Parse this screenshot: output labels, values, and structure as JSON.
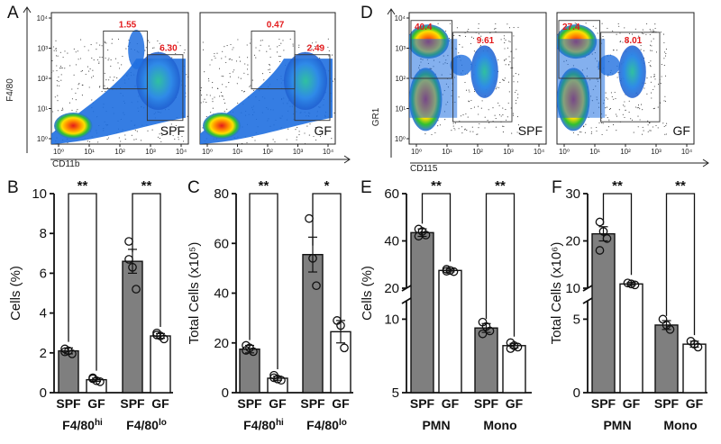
{
  "colors": {
    "spf_bar": "#7f7f7f",
    "gf_bar": "#ffffff",
    "gate_pct": "#e31a1c",
    "density_hi": "#e31a1c",
    "density_mid": "#1f6fe0"
  },
  "flow": {
    "left": {
      "letter": "A",
      "xlabel": "CD11b",
      "ylabel": "F4/80",
      "plots": [
        {
          "tag": "SPF",
          "gate_hi_pct": "1.55",
          "gate_lo_pct": "6.30"
        },
        {
          "tag": "GF",
          "gate_hi_pct": "0.47",
          "gate_lo_pct": "2.49"
        }
      ]
    },
    "right": {
      "letter": "D",
      "xlabel": "CD115",
      "ylabel": "GR1",
      "plots": [
        {
          "tag": "SPF",
          "gate_hi_pct": "40.4",
          "gate_lo_pct": "9.61"
        },
        {
          "tag": "GF",
          "gate_hi_pct": "27.4",
          "gate_lo_pct": "8.01"
        }
      ]
    },
    "xtick_labels": [
      "10⁰",
      "10¹",
      "10²",
      "10³",
      "10⁴"
    ],
    "ytick_labels": [
      "10⁰",
      "10¹",
      "10²",
      "10³",
      "10⁴"
    ]
  },
  "chart_data": [
    {
      "panel": "B",
      "type": "bar",
      "ylabel": "Cells (%)",
      "ylim": [
        0,
        10
      ],
      "yticks": [
        "0",
        "2",
        "4",
        "6",
        "8",
        "10"
      ],
      "group_labels": [
        {
          "base": "F4/80",
          "sup": "hi"
        },
        {
          "base": "F4/80",
          "sup": "lo"
        }
      ],
      "bar_labels": [
        "SPF",
        "GF"
      ],
      "bars": [
        {
          "group": 0,
          "cond": "SPF",
          "value": 2.1,
          "sem": 0.15,
          "points": [
            2.2,
            2.1,
            1.95,
            2.05
          ]
        },
        {
          "group": 0,
          "cond": "GF",
          "value": 0.65,
          "sem": 0.08,
          "points": [
            0.7,
            0.6,
            0.55,
            0.75
          ]
        },
        {
          "group": 1,
          "cond": "SPF",
          "value": 6.6,
          "sem": 0.6,
          "points": [
            7.6,
            6.3,
            5.2,
            6.7
          ]
        },
        {
          "group": 1,
          "cond": "GF",
          "value": 2.85,
          "sem": 0.12,
          "points": [
            3.0,
            2.85,
            2.7,
            2.9
          ]
        }
      ],
      "significance": [
        "**",
        "**"
      ]
    },
    {
      "panel": "C",
      "type": "bar",
      "ylabel": "Total Cells (x10⁵)",
      "ylim": [
        0,
        80
      ],
      "yticks": [
        "0",
        "20",
        "40",
        "60",
        "80"
      ],
      "group_labels": [
        {
          "base": "F4/80",
          "sup": "hi"
        },
        {
          "base": "F4/80",
          "sup": "lo"
        }
      ],
      "bar_labels": [
        "SPF",
        "GF"
      ],
      "bars": [
        {
          "group": 0,
          "cond": "SPF",
          "value": 17.5,
          "sem": 1.5,
          "points": [
            19,
            18,
            16.5,
            17
          ]
        },
        {
          "group": 0,
          "cond": "GF",
          "value": 5.8,
          "sem": 0.8,
          "points": [
            7,
            5.5,
            5,
            6
          ]
        },
        {
          "group": 1,
          "cond": "SPF",
          "value": 55.5,
          "sem": 7,
          "points": [
            70,
            54,
            43
          ]
        },
        {
          "group": 1,
          "cond": "GF",
          "value": 24.5,
          "sem": 4.5,
          "points": [
            29,
            27,
            18
          ]
        }
      ],
      "significance": [
        "**",
        "*"
      ]
    },
    {
      "panel": "E",
      "type": "bar",
      "ylabel": "Cells (%)",
      "yticks_upper": [
        "20",
        "40",
        "60"
      ],
      "yticks_lower": [
        "5",
        "10"
      ],
      "axis_break": true,
      "group_labels": [
        {
          "base": "PMN",
          "sup": ""
        },
        {
          "base": "Mono",
          "sup": ""
        }
      ],
      "bar_labels": [
        "SPF",
        "GF"
      ],
      "bars": [
        {
          "group": 0,
          "cond": "SPF",
          "value": 43.5,
          "sem": 1.6,
          "points": [
            45,
            44,
            42.5,
            42
          ]
        },
        {
          "group": 0,
          "cond": "GF",
          "value": 27.5,
          "sem": 0.6,
          "points": [
            28,
            27.5,
            27,
            27.2
          ]
        },
        {
          "group": 1,
          "cond": "SPF",
          "value": 9.4,
          "sem": 0.3,
          "points": [
            9.8,
            9.5,
            9.2,
            9.0
          ]
        },
        {
          "group": 1,
          "cond": "GF",
          "value": 8.2,
          "sem": 0.15,
          "points": [
            8.4,
            8.2,
            8.1,
            8.0
          ]
        }
      ],
      "significance": [
        "**",
        "**"
      ]
    },
    {
      "panel": "F",
      "type": "bar",
      "ylabel": "Total Cells (x10⁶)",
      "yticks_upper": [
        "10",
        "20",
        "30"
      ],
      "yticks_lower": [
        "0",
        "5"
      ],
      "axis_break": true,
      "group_labels": [
        {
          "base": "PMN",
          "sup": ""
        },
        {
          "base": "Mono",
          "sup": ""
        }
      ],
      "bar_labels": [
        "SPF",
        "GF"
      ],
      "bars": [
        {
          "group": 0,
          "cond": "SPF",
          "value": 21.5,
          "sem": 1.5,
          "points": [
            24,
            22,
            20.5,
            18
          ]
        },
        {
          "group": 0,
          "cond": "GF",
          "value": 10.9,
          "sem": 0.3,
          "points": [
            11.1,
            10.9,
            10.7
          ]
        },
        {
          "group": 1,
          "cond": "SPF",
          "value": 4.6,
          "sem": 0.3,
          "points": [
            5.0,
            4.6,
            4.3
          ]
        },
        {
          "group": 1,
          "cond": "GF",
          "value": 3.3,
          "sem": 0.2,
          "points": [
            3.5,
            3.3,
            3.1
          ]
        }
      ],
      "significance": [
        "**",
        "**"
      ]
    }
  ]
}
